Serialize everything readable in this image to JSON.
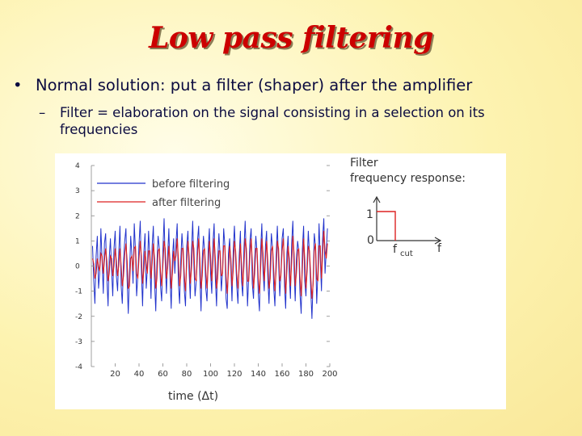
{
  "slide": {
    "title": "Low pass filtering",
    "bullet1": "Normal solution: put a filter (shaper) after the amplifier",
    "bullet1_marker": "•",
    "bullet2_marker": "–",
    "bullet2": "Filter = elaboration on the signal consisting in a selection on its frequencies"
  },
  "colors": {
    "title": "#cc0000",
    "before": "#2233cc",
    "after": "#dd2222",
    "text": "#0b0b40"
  },
  "chart_data": {
    "type": "line",
    "title": "",
    "xlabel": "time (Δt)",
    "ylabel": "",
    "xlim": [
      0,
      200
    ],
    "ylim": [
      -4,
      4
    ],
    "x_ticks": [
      20,
      40,
      60,
      80,
      100,
      120,
      140,
      160,
      180,
      200
    ],
    "y_ticks": [
      4,
      3,
      2,
      1,
      0,
      -1,
      -2,
      -3,
      -4
    ],
    "legend": [
      "before filtering",
      "after filtering"
    ],
    "legend_position": "top-left",
    "series": [
      {
        "name": "before filtering",
        "x_start": 1,
        "x_step": 1,
        "values": [
          0.8,
          -0.6,
          -1.5,
          0.4,
          1.2,
          -0.9,
          -0.3,
          1.5,
          0.2,
          -1.1,
          0.9,
          1.3,
          -0.5,
          -1.6,
          0.3,
          1.1,
          -0.2,
          -1.2,
          0.7,
          1.4,
          -0.4,
          -1.0,
          0.5,
          1.6,
          -0.8,
          -1.5,
          0.2,
          1.0,
          1.5,
          -0.6,
          -1.9,
          -0.3,
          1.2,
          0.4,
          -0.7,
          1.7,
          0.6,
          -1.2,
          -0.4,
          0.9,
          1.8,
          -0.2,
          -1.6,
          0.5,
          1.3,
          -0.9,
          -0.1,
          1.4,
          0.3,
          -1.3,
          0.8,
          1.6,
          -0.6,
          -1.8,
          0.1,
          1.2,
          0.7,
          -0.8,
          -1.4,
          0.6,
          1.9,
          0.2,
          -1.1,
          0.4,
          1.5,
          -0.5,
          -1.7,
          0.3,
          1.1,
          -0.3,
          0.9,
          1.7,
          -0.7,
          -1.5,
          0.2,
          1.3,
          0.5,
          -1.0,
          -1.6,
          0.8,
          1.4,
          -0.2,
          -1.3,
          0.6,
          1.8,
          0.1,
          -1.2,
          -0.6,
          1.0,
          1.6,
          -0.4,
          -1.8,
          0.3,
          1.2,
          0.6,
          -0.9,
          -1.4,
          0.7,
          1.5,
          -0.3,
          -1.1,
          0.9,
          1.7,
          -0.5,
          -1.6,
          0.2,
          1.3,
          0.4,
          -1.0,
          -0.2,
          1.5,
          0.8,
          -1.3,
          -1.7,
          0.5,
          1.1,
          -0.1,
          -1.4,
          0.6,
          1.6,
          0.3,
          -0.8,
          -1.5,
          0.4,
          1.4,
          -0.6,
          -1.2,
          0.7,
          1.8,
          0.2,
          -1.6,
          -0.4,
          1.0,
          1.5,
          -0.7,
          -1.3,
          0.3,
          1.2,
          0.5,
          -1.1,
          -1.8,
          0.6,
          1.7,
          -0.2,
          -1.0,
          0.8,
          1.4,
          -0.5,
          -1.5,
          0.1,
          1.3,
          0.7,
          -0.9,
          -1.6,
          0.4,
          1.6,
          0.2,
          -1.2,
          -0.3,
          1.1,
          1.5,
          -0.8,
          -1.7,
          0.5,
          1.2,
          -0.4,
          -1.3,
          0.9,
          1.8,
          -0.1,
          -1.4,
          0.3,
          1.0,
          0.6,
          -1.1,
          -1.9,
          0.7,
          1.6,
          -0.6,
          -1.2,
          0.2,
          1.4,
          0.4,
          -0.9,
          -2.1,
          -0.5,
          1.3,
          0.8,
          -1.5,
          -0.2,
          1.7,
          0.3,
          -1.0,
          1.1,
          1.9,
          -0.3,
          0.6,
          1.5
        ]
      },
      {
        "name": "after filtering",
        "x_start": 1,
        "x_step": 1,
        "values": [
          0.3,
          0.1,
          -0.5,
          -0.3,
          0.3,
          0.0,
          -0.2,
          0.5,
          0.4,
          -0.3,
          0.2,
          0.7,
          0.2,
          -0.6,
          -0.3,
          0.4,
          0.3,
          -0.4,
          0.0,
          0.7,
          0.2,
          -0.4,
          0.0,
          0.7,
          0.0,
          -0.8,
          -0.4,
          0.4,
          0.9,
          0.2,
          -0.9,
          -0.8,
          0.3,
          0.4,
          -0.2,
          0.7,
          0.8,
          -0.3,
          -0.5,
          0.3,
          1.0,
          0.4,
          -0.7,
          -0.2,
          0.6,
          0.1,
          -0.3,
          0.6,
          0.6,
          -0.5,
          0.1,
          0.9,
          0.3,
          -0.9,
          -0.5,
          0.6,
          0.7,
          -0.2,
          -0.8,
          0.0,
          1.0,
          0.7,
          -0.5,
          -0.1,
          0.8,
          0.2,
          -0.9,
          -0.3,
          0.6,
          0.2,
          0.4,
          1.1,
          0.3,
          -0.8,
          -0.4,
          0.7,
          0.7,
          -0.4,
          -1.0,
          0.1,
          1.0,
          0.4,
          -0.7,
          -0.1,
          1.0,
          0.7,
          -0.5,
          -0.6,
          0.4,
          1.1,
          0.3,
          -0.9,
          -0.4,
          0.6,
          0.7,
          -0.2,
          -0.9,
          0.0,
          1.0,
          0.4,
          -0.6,
          0.1,
          1.1,
          0.3,
          -0.9,
          -0.5,
          0.6,
          0.6,
          -0.4,
          -0.3,
          0.8,
          0.8,
          -0.4,
          -1.1,
          -0.2,
          0.8,
          0.3,
          -0.8,
          -0.2,
          1.0,
          0.6,
          -0.3,
          -0.9,
          -0.1,
          0.9,
          0.1,
          -0.8,
          0.0,
          1.1,
          0.7,
          -0.6,
          -0.6,
          0.4,
          1.1,
          0.2,
          -0.9,
          -0.3,
          0.7,
          0.7,
          -0.5,
          -1.1,
          -0.1,
          1.1,
          0.5,
          -0.6,
          0.2,
          1.0,
          0.2,
          -0.9,
          -0.5,
          0.6,
          0.8,
          -0.2,
          -1.0,
          -0.2,
          1.0,
          0.7,
          -0.6,
          -0.4,
          0.6,
          1.1,
          0.0,
          -1.1,
          -0.2,
          0.8,
          0.3,
          -0.8,
          0.1,
          1.2,
          0.5,
          -0.8,
          -0.3,
          0.6,
          0.7,
          -0.4,
          -1.2,
          -0.1,
          1.1,
          0.3,
          -0.9,
          -0.2,
          0.8,
          0.6,
          -0.4,
          -1.3,
          -0.7,
          0.6,
          0.9,
          -0.5,
          -0.6,
          0.8,
          0.8,
          -0.5,
          0.4,
          1.4,
          0.6,
          0.3,
          0.9
        ]
      }
    ]
  },
  "inset": {
    "heading_line1": "Filter",
    "heading_line2": "frequency response:",
    "y_label_one": "1",
    "y_label_zero": "0",
    "cut_label_main": "f",
    "cut_label_sub": "cut",
    "x_label": "f"
  }
}
